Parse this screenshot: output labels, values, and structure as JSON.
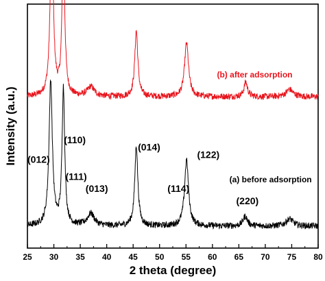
{
  "chart_data": {
    "type": "line",
    "title": "",
    "xlabel": "2 theta (degree)",
    "ylabel": "Intensity (a.u.)",
    "xlim": [
      25,
      80
    ],
    "xticks": [
      25,
      30,
      35,
      40,
      45,
      50,
      55,
      60,
      65,
      70,
      75,
      80
    ],
    "y_tick_labels": false,
    "grid": false,
    "legend": "none",
    "series": [
      {
        "name": "(b) after adsorption",
        "color": "#e8141c",
        "baseline": 0.62,
        "noise": 0.013,
        "peaks": [
          {
            "x": 29.6,
            "height": 0.7,
            "width": 0.35
          },
          {
            "x": 31.8,
            "height": 0.62,
            "width": 0.3
          },
          {
            "x": 45.6,
            "height": 0.27,
            "width": 0.35
          },
          {
            "x": 55.1,
            "height": 0.22,
            "width": 0.45
          },
          {
            "x": 66.3,
            "height": 0.06,
            "width": 0.4
          },
          {
            "x": 37.0,
            "height": 0.04,
            "width": 0.8
          },
          {
            "x": 74.6,
            "height": 0.03,
            "width": 0.8
          }
        ]
      },
      {
        "name": "(a) before adsorption",
        "color": "#000000",
        "baseline": 0.09,
        "noise": 0.013,
        "peaks": [
          {
            "x": 29.4,
            "height": 0.59,
            "width": 0.38
          },
          {
            "x": 31.8,
            "height": 0.56,
            "width": 0.3
          },
          {
            "x": 45.6,
            "height": 0.33,
            "width": 0.35
          },
          {
            "x": 55.1,
            "height": 0.27,
            "width": 0.45
          },
          {
            "x": 37.0,
            "height": 0.05,
            "width": 0.8
          },
          {
            "x": 66.2,
            "height": 0.04,
            "width": 0.5
          },
          {
            "x": 74.6,
            "height": 0.03,
            "width": 0.8
          }
        ]
      }
    ],
    "annotations": [
      {
        "text": "(012)",
        "x": 25.0,
        "y": 0.35
      },
      {
        "text": "(110)",
        "x": 31.9,
        "y": 0.43
      },
      {
        "text": "(111)",
        "x": 32.2,
        "y": 0.28
      },
      {
        "text": "(013)",
        "x": 36.0,
        "y": 0.23
      },
      {
        "text": "(014)",
        "x": 45.9,
        "y": 0.4
      },
      {
        "text": "(114)",
        "x": 51.5,
        "y": 0.23
      },
      {
        "text": "(122)",
        "x": 57.1,
        "y": 0.37
      },
      {
        "text": "(220)",
        "x": 64.5,
        "y": 0.18
      }
    ],
    "series_labels": [
      {
        "series": 0,
        "text": "(b) after adsorption",
        "x": 68.0,
        "y": 0.7
      },
      {
        "series": 1,
        "text": "(a) before adsorption",
        "x": 71.0,
        "y": 0.27
      }
    ]
  }
}
